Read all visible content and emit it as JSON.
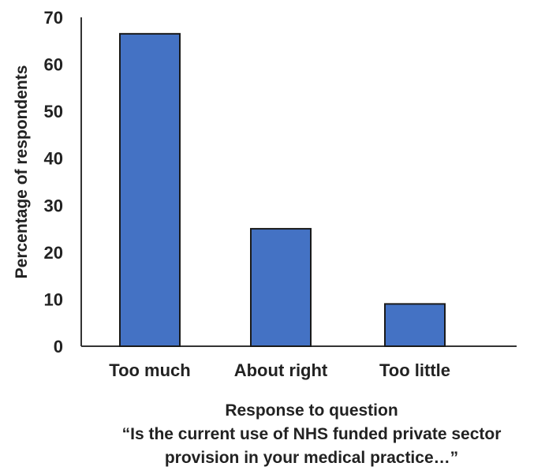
{
  "chart_data": {
    "type": "bar",
    "categories": [
      "Too much",
      "About right",
      "Too little"
    ],
    "values": [
      66.5,
      25,
      9
    ],
    "ylabel": "Percentage of respondents",
    "xlabel_lines": [
      "Response to question",
      "“Is the current use of NHS funded private sector",
      "provision in your medical practice…”"
    ],
    "ylim": [
      0,
      70
    ],
    "yticks": [
      0,
      10,
      20,
      30,
      40,
      50,
      60,
      70
    ],
    "grid": false,
    "bar_color": "#4472c4",
    "bar_edge_color": "#1a1a1a"
  }
}
